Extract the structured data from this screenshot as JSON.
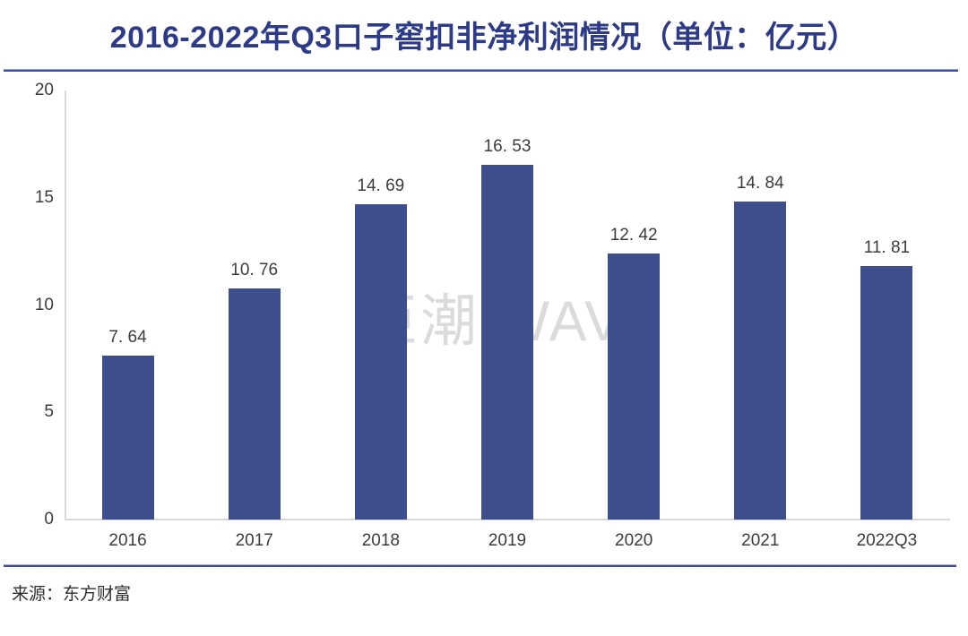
{
  "header": {
    "title": "2016-2022年Q3口子窖扣非净利润情况（单位：亿元）"
  },
  "watermark": {
    "text": "巨潮 WAVE"
  },
  "footer": {
    "source": "来源：东方财富"
  },
  "colors": {
    "title": "#2D3A87",
    "divider": "#3F4C9C",
    "bar": "#3E4E8C",
    "axis": "#D9D9D9",
    "tick_label": "#3C3C3C",
    "watermark": "#DBDBDB"
  },
  "chart_data": {
    "type": "bar",
    "title": "2016-2022年Q3口子窖扣非净利润情况（单位：亿元）",
    "categories": [
      "2016",
      "2017",
      "2018",
      "2019",
      "2020",
      "2021",
      "2022Q3"
    ],
    "values": [
      7.64,
      10.76,
      14.69,
      16.53,
      12.42,
      14.84,
      11.81
    ],
    "value_labels": [
      "7. 64",
      "10. 76",
      "14. 69",
      "16. 53",
      "12. 42",
      "14. 84",
      "11. 81"
    ],
    "xlabel": "",
    "ylabel": "",
    "ylim": [
      0,
      20
    ],
    "yticks": [
      0,
      5,
      10,
      15,
      20
    ],
    "grid": false,
    "legend": "none",
    "bar_color": "#3E4E8C",
    "unit": "亿元",
    "source": "东方财富"
  }
}
